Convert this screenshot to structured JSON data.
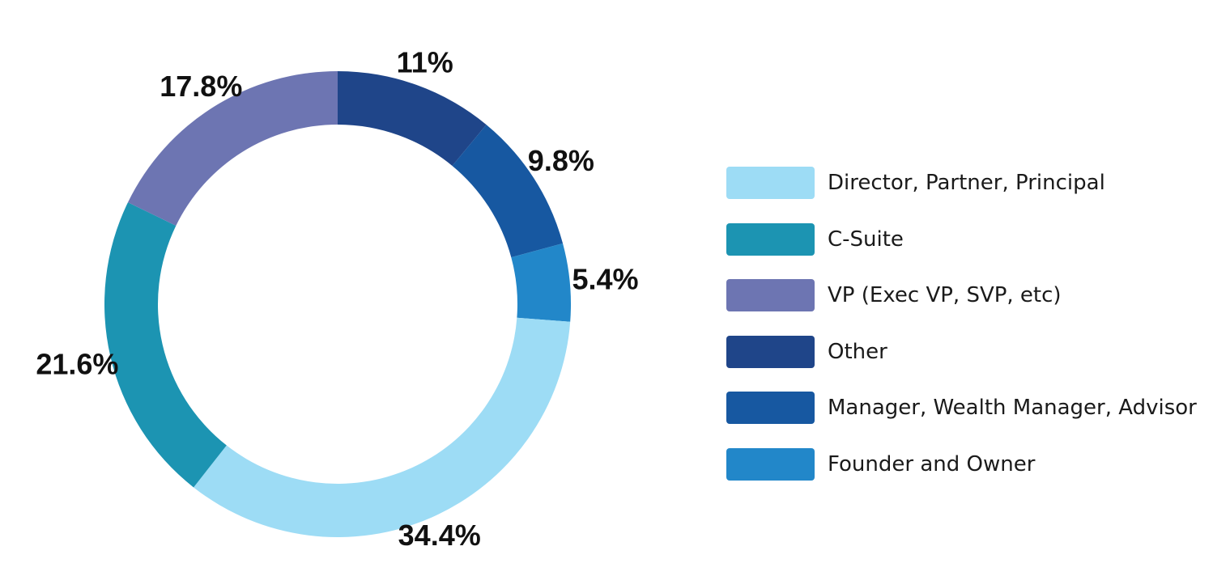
{
  "chart_data": {
    "type": "donut",
    "title": "",
    "slices": [
      {
        "name": "Other",
        "value": 11,
        "label": "11%",
        "color": "#1F4589"
      },
      {
        "name": "Manager, Wealth Manager, Advisor",
        "value": 9.8,
        "label": "9.8%",
        "color": "#1758A1"
      },
      {
        "name": "Founder and Owner",
        "value": 5.4,
        "label": "5.4%",
        "color": "#2287C9"
      },
      {
        "name": "Director, Partner, Principal",
        "value": 34.4,
        "label": "34.4%",
        "color": "#9DDCF5"
      },
      {
        "name": "C-Suite",
        "value": 21.6,
        "label": "21.6%",
        "color": "#1C94B2"
      },
      {
        "name": "VP (Exec VP, SVP, etc)",
        "value": 17.8,
        "label": "17.8%",
        "color": "#6D75B2"
      }
    ],
    "legend": {
      "position": "right",
      "items": [
        {
          "label": "Director, Partner, Principal",
          "color": "#9DDCF5"
        },
        {
          "label": "C-Suite",
          "color": "#1C94B2"
        },
        {
          "label": "VP (Exec VP, SVP, etc)",
          "color": "#6D75B2"
        },
        {
          "label": "Other",
          "color": "#1F4589"
        },
        {
          "label": "Manager, Wealth Manager, Advisor",
          "color": "#1758A1"
        },
        {
          "label": "Founder and Owner",
          "color": "#2287C9"
        }
      ]
    }
  }
}
